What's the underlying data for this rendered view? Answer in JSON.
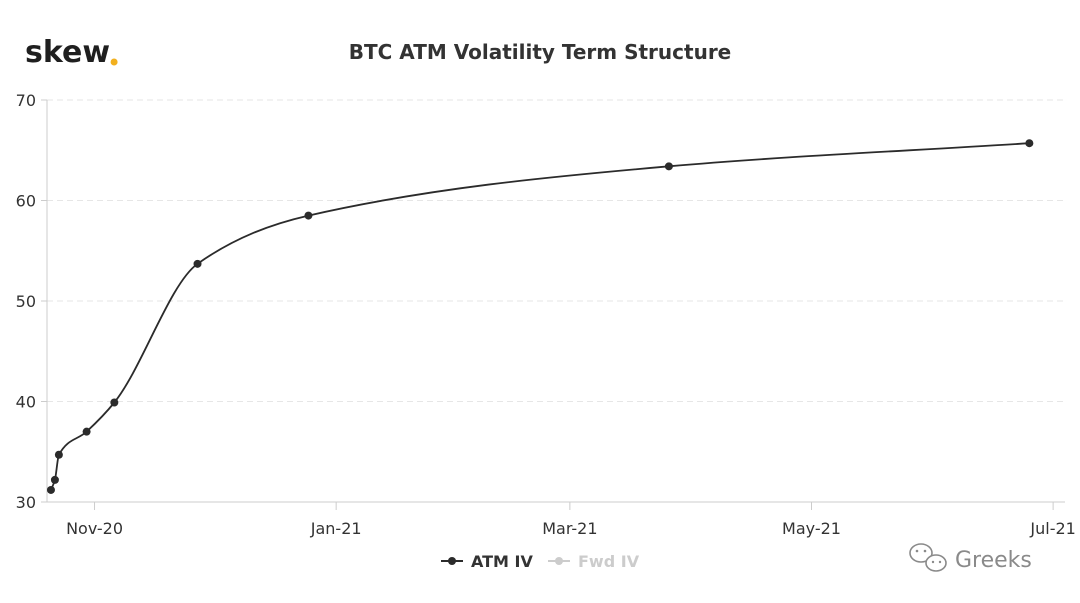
{
  "logo": {
    "text": "skew",
    "dot": ".",
    "dot_color": "#f2b01e"
  },
  "watermark": {
    "text": "Greeks",
    "icon": "wechat-icon"
  },
  "chart_data": {
    "type": "line",
    "title": "BTC ATM Volatility Term Structure",
    "xlabel": "",
    "ylabel": "",
    "x_axis_type": "date",
    "xlim": [
      "2020-10-20",
      "2021-07-04"
    ],
    "ylim": [
      30,
      70
    ],
    "y_ticks": [
      30,
      40,
      50,
      60,
      70
    ],
    "x_ticks": [
      {
        "label": "Nov-20",
        "date": "2020-11-01"
      },
      {
        "label": "Jan-21",
        "date": "2021-01-01"
      },
      {
        "label": "Mar-21",
        "date": "2021-03-01"
      },
      {
        "label": "May-21",
        "date": "2021-05-01"
      },
      {
        "label": "Jul-21",
        "date": "2021-07-01"
      }
    ],
    "grid": {
      "horizontal": true,
      "style": "dashed"
    },
    "legend": {
      "position": "bottom-center"
    },
    "series": [
      {
        "name": "ATM IV",
        "color": "#2b2b2b",
        "visible": true,
        "points": [
          {
            "x": "2020-10-21",
            "y": 31.2
          },
          {
            "x": "2020-10-22",
            "y": 32.2
          },
          {
            "x": "2020-10-23",
            "y": 34.7
          },
          {
            "x": "2020-10-30",
            "y": 37.0
          },
          {
            "x": "2020-11-06",
            "y": 39.9
          },
          {
            "x": "2020-11-27",
            "y": 53.7
          },
          {
            "x": "2020-12-25",
            "y": 58.5
          },
          {
            "x": "2021-03-26",
            "y": 63.4
          },
          {
            "x": "2021-06-25",
            "y": 65.7
          }
        ]
      },
      {
        "name": "Fwd IV",
        "color": "#cccccc",
        "visible": false,
        "points": []
      }
    ]
  }
}
